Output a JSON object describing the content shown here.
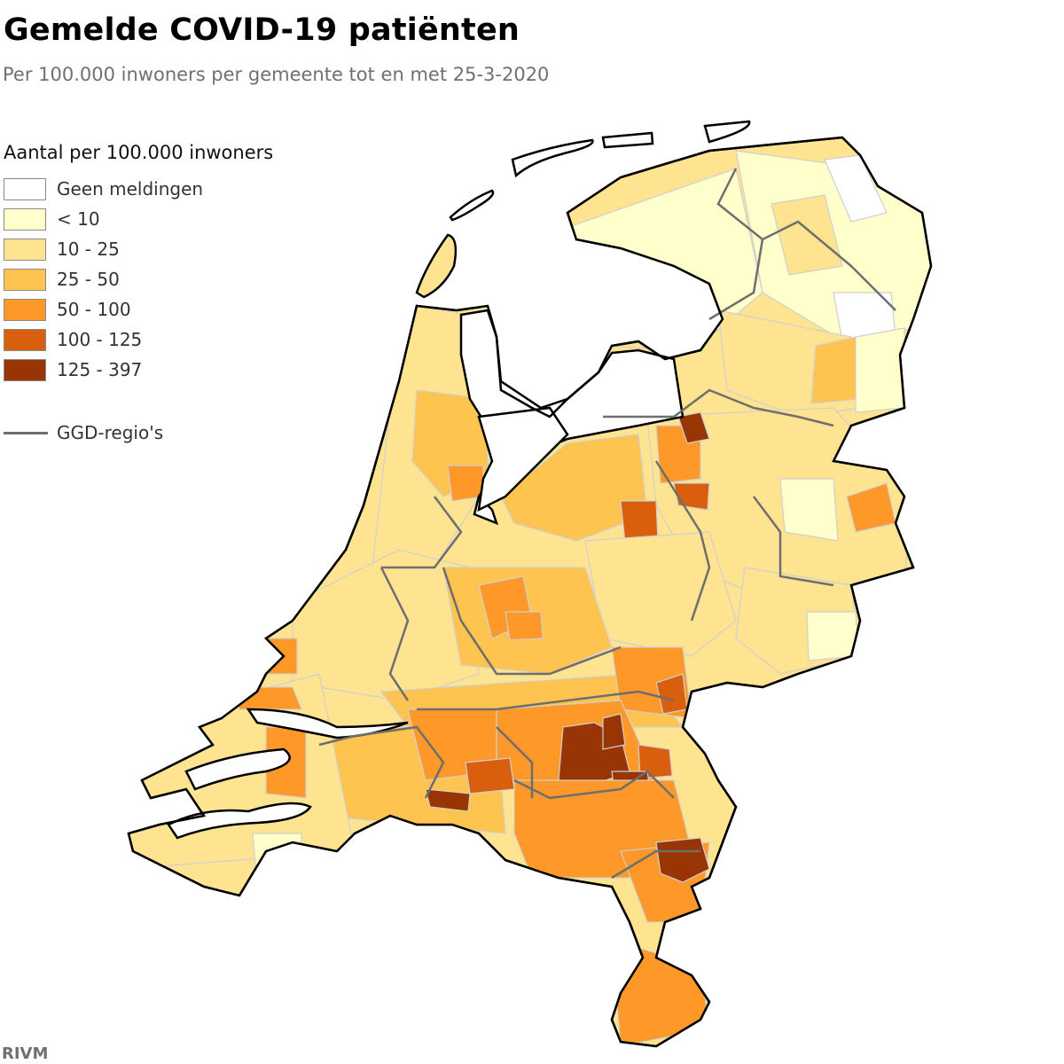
{
  "title": "Gemelde COVID-19 patiënten",
  "subtitle": "Per 100.000 inwoners per gemeente tot en met 25-3-2020",
  "legend": {
    "title": "Aantal per 100.000 inwoners",
    "items": [
      {
        "label": "Geen meldingen",
        "color": "#ffffff"
      },
      {
        "label": "< 10",
        "color": "#ffffcc"
      },
      {
        "label": "10 - 25",
        "color": "#fee391"
      },
      {
        "label": "25 - 50",
        "color": "#fec44f"
      },
      {
        "label": "50 - 100",
        "color": "#fe9929"
      },
      {
        "label": "100 - 125",
        "color": "#d95f0e"
      },
      {
        "label": "125 - 397",
        "color": "#993404"
      }
    ],
    "ggd_label": "GGD-regio's",
    "ggd_color": "#6e6e6e"
  },
  "source": "RIVM"
}
